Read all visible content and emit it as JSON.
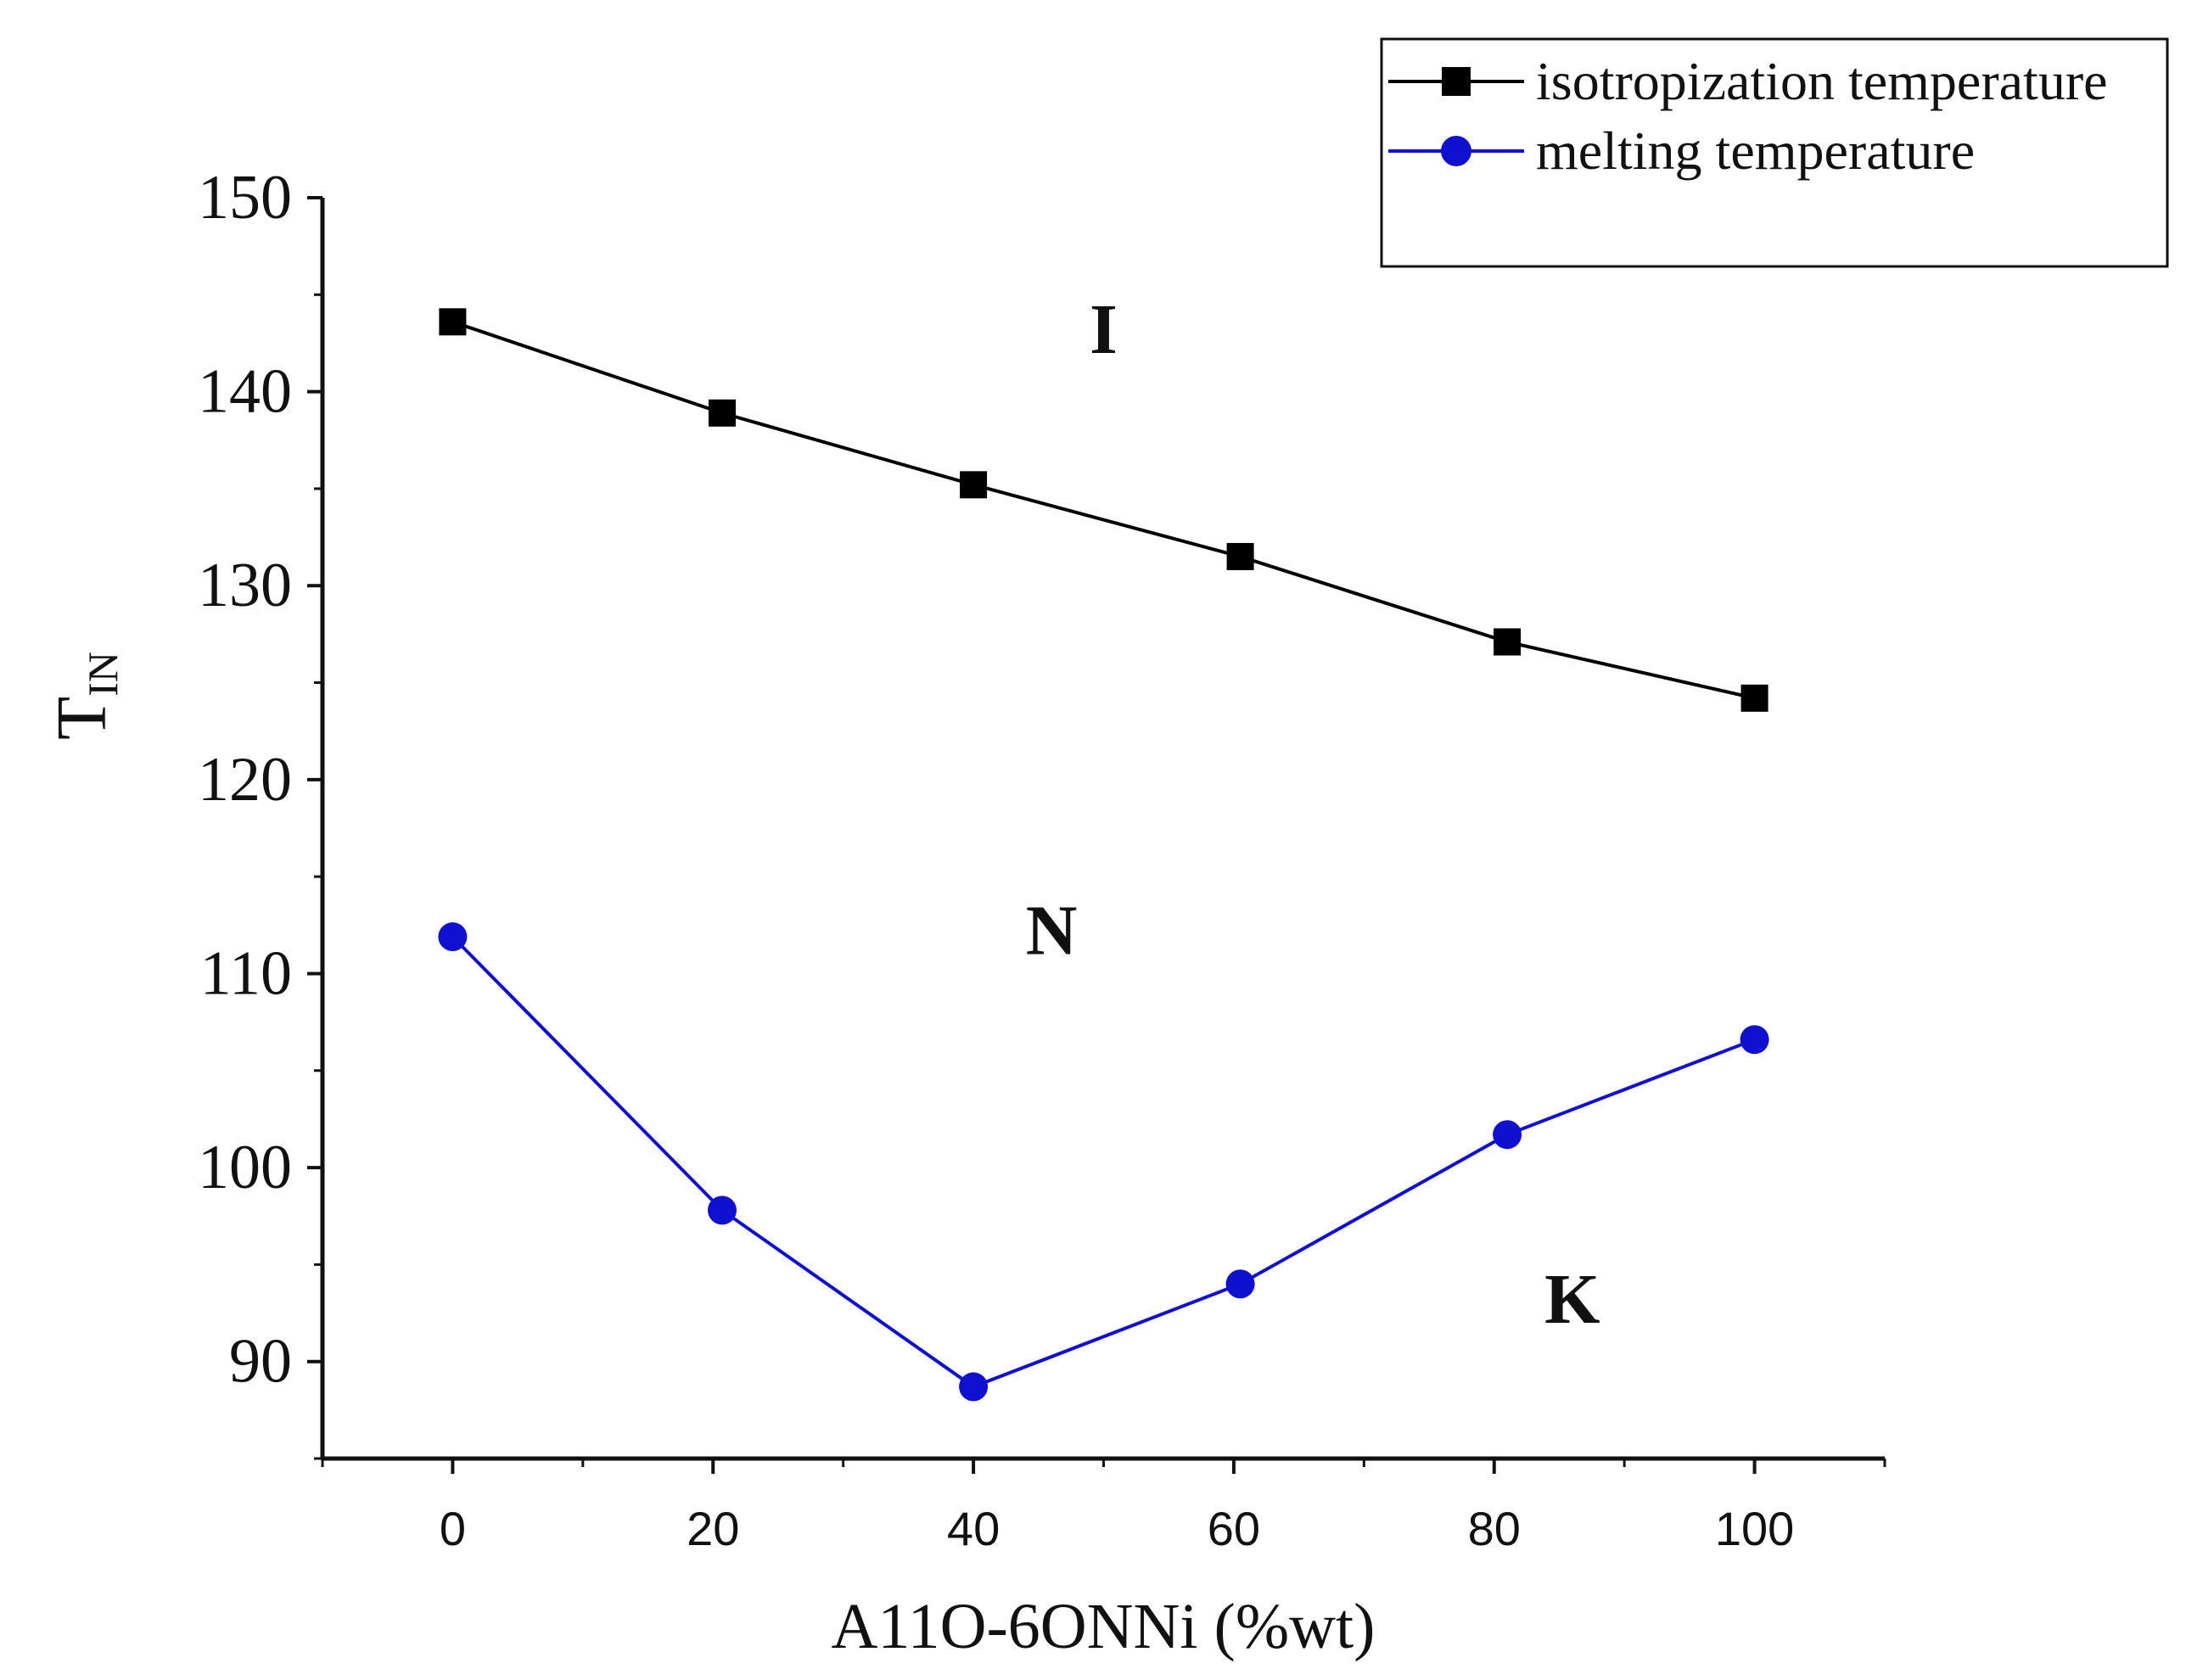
{
  "chart_data": {
    "type": "line",
    "title": "",
    "xlabel": "A11O-6ONNi (%wt)",
    "ylabel_main": "T",
    "ylabel_sub": "IN",
    "xlim": [
      -10,
      110
    ],
    "ylim": [
      85,
      150
    ],
    "xticks": [
      0,
      20,
      40,
      60,
      80,
      100
    ],
    "yticks": [
      90,
      100,
      110,
      120,
      130,
      140,
      150
    ],
    "grid": false,
    "legend_position": "top-right",
    "series": [
      {
        "name": "isotropization temperature",
        "marker": "square",
        "color": "#000000",
        "x": [
          0,
          20.7,
          40,
          60.5,
          81,
          100
        ],
        "y": [
          143.6,
          138.9,
          135.2,
          131.5,
          127.1,
          124.2
        ]
      },
      {
        "name": "melting temperature",
        "marker": "circle",
        "color": "#1010d0",
        "x": [
          0,
          20.7,
          40,
          60.5,
          81,
          100
        ],
        "y": [
          111.9,
          97.8,
          88.7,
          94.0,
          101.7,
          106.6
        ]
      }
    ],
    "annotations": [
      {
        "text": "I",
        "x": 50,
        "y": 142
      },
      {
        "text": "N",
        "x": 46,
        "y": 111
      },
      {
        "text": "K",
        "x": 86,
        "y": 92
      }
    ]
  }
}
